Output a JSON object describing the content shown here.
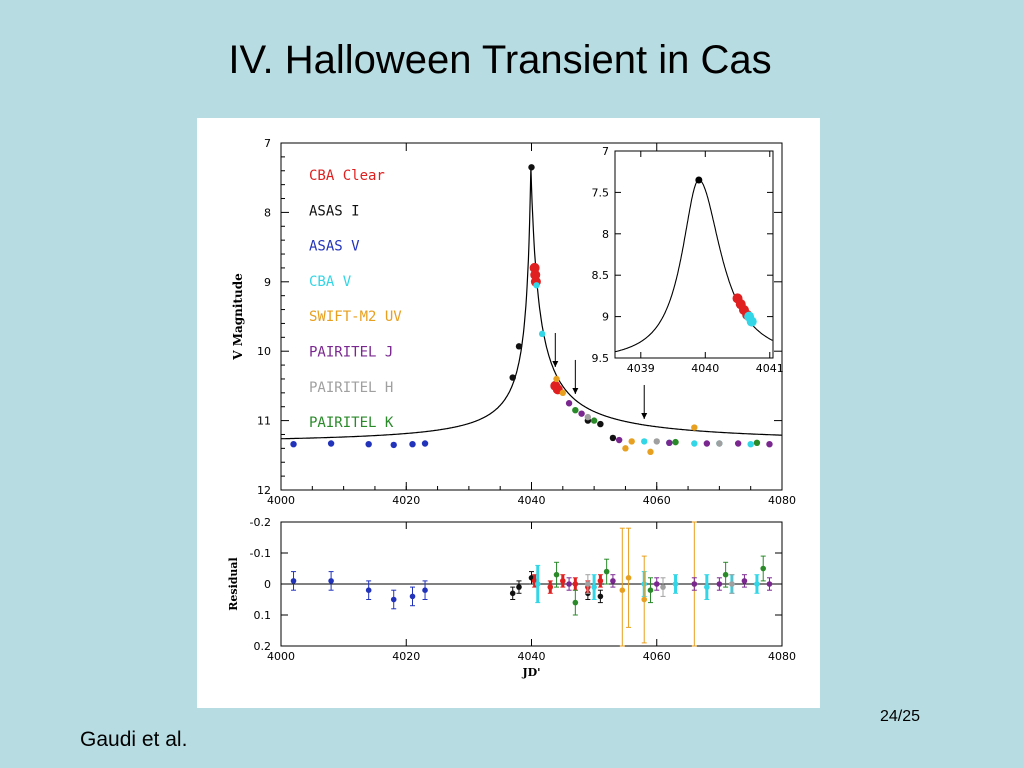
{
  "slide": {
    "title": "IV. Halloween Transient in Cas",
    "slide_number": "24/25",
    "credit": "Gaudi et al."
  },
  "colors": {
    "background": "#b7dde3",
    "CBA Clear": "#e02020",
    "ASAS I": "#111111",
    "ASAS V": "#2233bb",
    "CBA V": "#33d6e6",
    "SWIFT-M2 UV": "#e8a020",
    "PAIRITEL J": "#7a2890",
    "PAIRITEL H": "#a0a0a0",
    "PAIRITEL K": "#2a8a2a"
  },
  "chart_data": [
    {
      "type": "scatter",
      "panel": "main",
      "ylabel": "V Magnitude",
      "xlim": [
        4000,
        4080
      ],
      "ylim": [
        12,
        7
      ],
      "x_ticks": [
        "4000",
        "4020",
        "4040",
        "4060",
        "4080"
      ],
      "y_ticks": [
        "7",
        "8",
        "9",
        "10",
        "11",
        "12"
      ],
      "legend_position": "top-left",
      "legend": [
        "CBA  Clear",
        "ASAS I",
        "ASAS V",
        "CBA  V",
        "SWIFT-M2 UV",
        "PAIRITEL J",
        "PAIRITEL H",
        "PAIRITEL K"
      ],
      "model": {
        "peak_x": 4039.9,
        "peak_y": 7.35,
        "baseline": 11.34
      },
      "arrows_x": [
        4043.8,
        4047,
        4058
      ],
      "series": [
        {
          "name": "ASAS V",
          "x": [
            4002,
            4008,
            4014,
            4018,
            4021,
            4023
          ],
          "y": [
            11.34,
            11.33,
            11.34,
            11.35,
            11.34,
            11.33
          ]
        },
        {
          "name": "ASAS I",
          "x": [
            4037,
            4038,
            4040,
            4049,
            4051,
            4053
          ],
          "y": [
            10.38,
            9.93,
            7.35,
            11.0,
            11.05,
            11.25
          ]
        },
        {
          "name": "CBA  Clear",
          "x": [
            4040.5,
            4040.6,
            4040.7,
            4043.8,
            4044.2
          ],
          "y": [
            8.8,
            8.9,
            9.0,
            10.5,
            10.55
          ]
        },
        {
          "name": "CBA  V",
          "x": [
            4040.8,
            4041.7,
            4058,
            4062,
            4066,
            4070,
            4075
          ],
          "y": [
            9.05,
            9.75,
            11.3,
            11.32,
            11.33,
            11.33,
            11.34
          ]
        },
        {
          "name": "SWIFT-M2 UV",
          "x": [
            4044,
            4045,
            4055,
            4056,
            4059,
            4066
          ],
          "y": [
            10.4,
            10.6,
            11.4,
            11.3,
            11.45,
            11.1
          ]
        },
        {
          "name": "PAIRITEL J",
          "x": [
            4046,
            4048,
            4054,
            4062,
            4068,
            4073,
            4078
          ],
          "y": [
            10.75,
            10.9,
            11.28,
            11.32,
            11.33,
            11.33,
            11.34
          ]
        },
        {
          "name": "PAIRITEL H",
          "x": [
            4049,
            4060,
            4070
          ],
          "y": [
            10.95,
            11.3,
            11.33
          ]
        },
        {
          "name": "PAIRITEL K",
          "x": [
            4047,
            4050,
            4063,
            4076
          ],
          "y": [
            10.85,
            11.0,
            11.31,
            11.32
          ]
        }
      ]
    },
    {
      "type": "line",
      "panel": "inset",
      "xlim": [
        4038.6,
        4041.05
      ],
      "ylim": [
        9.5,
        7
      ],
      "x_ticks": [
        "4039",
        "4040",
        "4041"
      ],
      "y_ticks": [
        "7",
        "7.5",
        "8",
        "8.5",
        "9",
        "9.5"
      ],
      "peak": {
        "x": 4039.9,
        "y": 7.35
      },
      "series": [
        {
          "name": "CBA  Clear",
          "x": [
            4040.5,
            4040.55,
            4040.6,
            4040.65
          ],
          "y": [
            8.78,
            8.85,
            8.92,
            8.98
          ]
        },
        {
          "name": "CBA  V",
          "x": [
            4040.68,
            4040.72
          ],
          "y": [
            9.0,
            9.06
          ]
        }
      ]
    },
    {
      "type": "scatter",
      "panel": "residual",
      "xlabel": "JD'",
      "ylabel": "Residual",
      "xlim": [
        4000,
        4080
      ],
      "ylim": [
        0.2,
        -0.2
      ],
      "x_ticks": [
        "4000",
        "4020",
        "4040",
        "4060",
        "4080"
      ],
      "y_ticks": [
        "-0.2",
        "-0.1",
        "0",
        "0.1",
        "0.2"
      ],
      "series": [
        {
          "name": "ASAS V",
          "x": [
            4002,
            4008,
            4014,
            4018,
            4021,
            4023
          ],
          "y": [
            -0.01,
            -0.01,
            0.02,
            0.05,
            0.04,
            0.02
          ],
          "err": [
            0.03,
            0.03,
            0.03,
            0.03,
            0.03,
            0.03
          ]
        },
        {
          "name": "ASAS I",
          "x": [
            4037,
            4038,
            4040,
            4049,
            4051
          ],
          "y": [
            0.03,
            0.01,
            -0.02,
            0.03,
            0.04
          ],
          "err": [
            0.02,
            0.02,
            0.02,
            0.02,
            0.02
          ]
        },
        {
          "name": "CBA  Clear",
          "x": [
            4040.5,
            4043,
            4045,
            4047,
            4049,
            4051
          ],
          "y": [
            -0.01,
            0.01,
            -0.01,
            0.0,
            0.01,
            -0.01
          ],
          "err": [
            0.02,
            0.02,
            0.02,
            0.02,
            0.02,
            0.02
          ]
        },
        {
          "name": "CBA  V",
          "x": [
            4041,
            4050,
            4058,
            4063,
            4068,
            4072,
            4076
          ],
          "y": [
            0.0,
            0.01,
            0.0,
            0.0,
            0.01,
            0.0,
            0.0
          ],
          "err": [
            0.06,
            0.04,
            0.04,
            0.03,
            0.04,
            0.03,
            0.03
          ]
        },
        {
          "name": "SWIFT-M2 UV",
          "x": [
            4054.5,
            4055.5,
            4058,
            4066
          ],
          "y": [
            0.02,
            -0.02,
            0.05,
            0.0
          ],
          "err": [
            0.2,
            0.16,
            0.14,
            0.2
          ]
        },
        {
          "name": "PAIRITEL J",
          "x": [
            4046,
            4053,
            4060,
            4066,
            4070,
            4074,
            4078
          ],
          "y": [
            0.0,
            -0.01,
            0.0,
            0.0,
            0.0,
            -0.01,
            0.0
          ],
          "err": [
            0.02,
            0.02,
            0.02,
            0.02,
            0.02,
            0.02,
            0.02
          ]
        },
        {
          "name": "PAIRITEL H",
          "x": [
            4049,
            4061,
            4072
          ],
          "y": [
            0.0,
            0.01,
            0.0
          ],
          "err": [
            0.03,
            0.03,
            0.03
          ]
        },
        {
          "name": "PAIRITEL K",
          "x": [
            4044,
            4047,
            4052,
            4059,
            4071,
            4077
          ],
          "y": [
            -0.03,
            0.06,
            -0.04,
            0.02,
            -0.03,
            -0.05
          ],
          "err": [
            0.04,
            0.04,
            0.04,
            0.04,
            0.04,
            0.04
          ]
        }
      ]
    }
  ]
}
